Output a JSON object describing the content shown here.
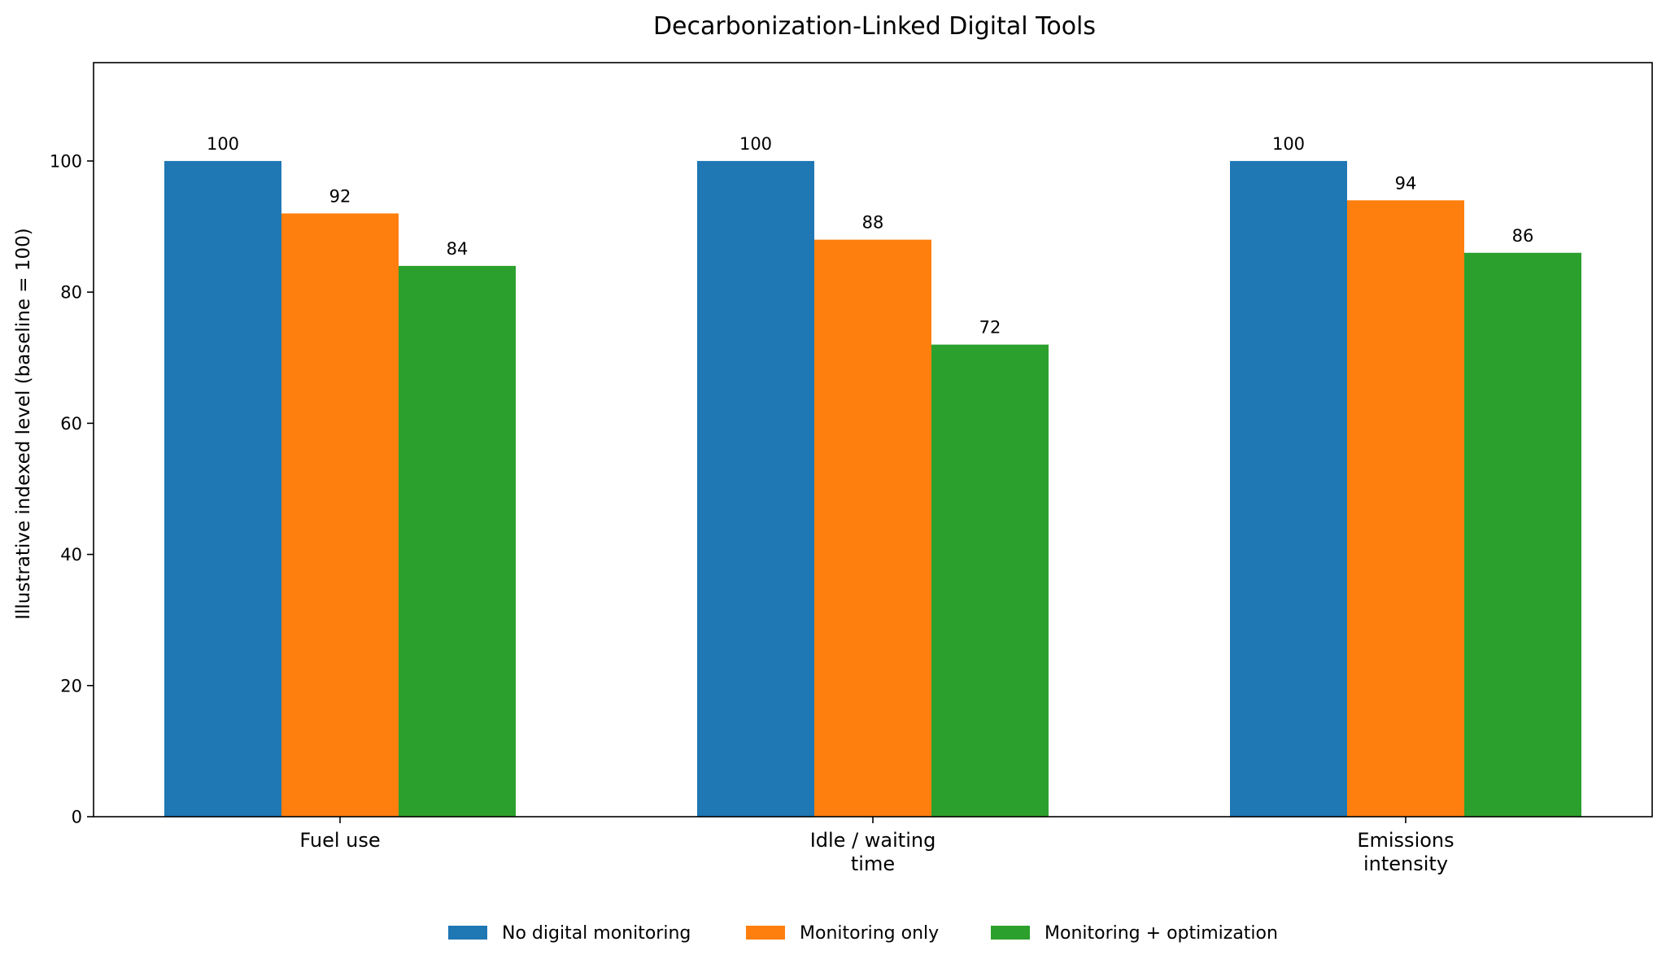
{
  "chart_data": {
    "type": "bar",
    "title": "Decarbonization-Linked Digital Tools",
    "xlabel": "",
    "ylabel": "Illustrative indexed level (baseline = 100)",
    "categories": [
      [
        "Fuel use"
      ],
      [
        "Idle / waiting",
        "time"
      ],
      [
        "Emissions",
        "intensity"
      ]
    ],
    "series": [
      {
        "name": "No digital monitoring",
        "color": "#1f77b4",
        "values": [
          100,
          100,
          100
        ]
      },
      {
        "name": "Monitoring only",
        "color": "#ff7f0e",
        "values": [
          92,
          88,
          94
        ]
      },
      {
        "name": "Monitoring + optimization",
        "color": "#2ca02c",
        "values": [
          84,
          72,
          86
        ]
      }
    ],
    "ylim": [
      0,
      115
    ],
    "yticks": [
      0,
      20,
      40,
      60,
      80,
      100
    ],
    "grid": false,
    "legend_position": "bottom-center",
    "data_labels": true
  }
}
